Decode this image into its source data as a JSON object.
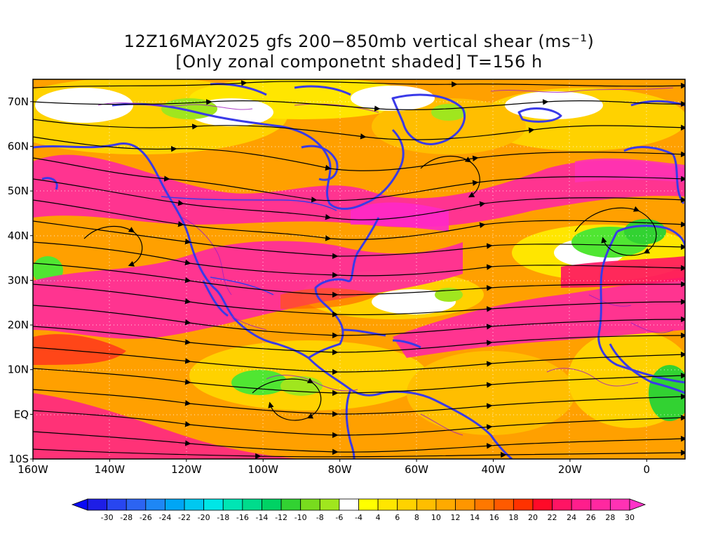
{
  "title": {
    "line1": "12Z16MAY2025 gfs 200−850mb vertical shear (ms⁻¹)",
    "line2": "[Only zonal componetnt shaded] T=156 h"
  },
  "map": {
    "lon_range": [
      -160,
      10
    ],
    "lat_range": [
      -10,
      75
    ],
    "lat_ticks": [
      {
        "value": 70,
        "label": "70N"
      },
      {
        "value": 60,
        "label": "60N"
      },
      {
        "value": 50,
        "label": "50N"
      },
      {
        "value": 40,
        "label": "40N"
      },
      {
        "value": 30,
        "label": "30N"
      },
      {
        "value": 20,
        "label": "20N"
      },
      {
        "value": 10,
        "label": "10N"
      },
      {
        "value": 0,
        "label": "EQ"
      },
      {
        "value": -10,
        "label": "10S"
      }
    ],
    "lon_ticks": [
      {
        "value": -160,
        "label": "160W"
      },
      {
        "value": -140,
        "label": "140W"
      },
      {
        "value": -120,
        "label": "120W"
      },
      {
        "value": -100,
        "label": "100W"
      },
      {
        "value": -80,
        "label": "80W"
      },
      {
        "value": -60,
        "label": "60W"
      },
      {
        "value": -40,
        "label": "40W"
      },
      {
        "value": -20,
        "label": "20W"
      },
      {
        "value": 0,
        "label": "0"
      }
    ],
    "colors": {
      "coastline": "#3a3ae8",
      "streamline": "#000000",
      "contour": "#a020c0",
      "grid": "#ffffff"
    }
  },
  "colorbar": {
    "labels": [
      "-30",
      "-28",
      "-26",
      "-24",
      "-22",
      "-20",
      "-18",
      "-16",
      "-14",
      "-12",
      "-10",
      "-8",
      "-6",
      "-4",
      "4",
      "6",
      "8",
      "10",
      "12",
      "14",
      "16",
      "18",
      "20",
      "22",
      "24",
      "26",
      "28",
      "30"
    ],
    "colors": [
      "#1e1ee6",
      "#2846f0",
      "#2c64f2",
      "#1e87f5",
      "#00a6f5",
      "#00c8f0",
      "#00e6e6",
      "#00e6b4",
      "#00dc8c",
      "#00d264",
      "#32d232",
      "#78dc1e",
      "#a0e61e",
      "#ffffff",
      "#ffff00",
      "#ffe600",
      "#ffd200",
      "#ffbe00",
      "#ffaa00",
      "#ff9600",
      "#ff7800",
      "#ff5a00",
      "#ff3200",
      "#ff0a28",
      "#ff1464",
      "#ff1e8c",
      "#ff28a0",
      "#ff32b4"
    ],
    "under_color": "#0a0af5",
    "over_color": "#ff32c8"
  }
}
